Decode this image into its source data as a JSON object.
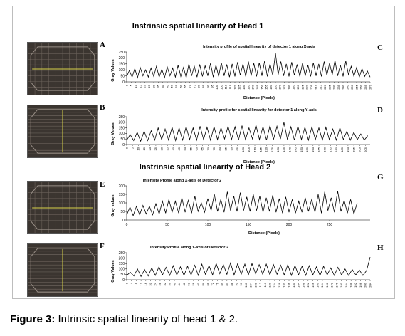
{
  "figure": {
    "head1_title": "Instrinsic spatial linearity of Head 1",
    "head2_title": "Instrinsic spatial linearity of Head 2",
    "caption_label": "Figure 3:",
    "caption_text": " Intrinsic spatial linearity of head 1 & 2."
  },
  "panels": {
    "A": "A",
    "B": "B",
    "C": "C",
    "D": "D",
    "E": "E",
    "F": "F",
    "G": "G",
    "H": "H"
  },
  "colors": {
    "line": "#000000",
    "image_bg": "#3b3530",
    "crosshair": "#d8d24a"
  },
  "chart_data": [
    {
      "id": "C",
      "type": "line",
      "title": "Intensity profile of spatial linearity of detector 1 along X-axis",
      "xlabel": "Distance (Pixels)",
      "ylabel": "Gray Values",
      "xlim": [
        0,
        270
      ],
      "ylim": [
        0,
        250
      ],
      "yticks": [
        0,
        50,
        100,
        150,
        200,
        250
      ],
      "xticks": [
        0,
        5,
        10,
        15,
        20,
        25,
        30,
        35,
        40,
        45,
        50,
        55,
        60,
        65,
        70,
        75,
        80,
        85,
        90,
        95,
        100,
        105,
        110,
        115,
        120,
        125,
        130,
        135,
        140,
        145,
        150,
        155,
        160,
        165,
        170,
        175,
        180,
        185,
        190,
        195,
        200,
        205,
        210,
        215,
        220,
        225,
        230,
        235,
        240,
        245,
        250,
        255,
        260,
        265,
        270
      ],
      "x": [
        0,
        3,
        6,
        9,
        12,
        15,
        18,
        21,
        24,
        27,
        30,
        33,
        36,
        39,
        42,
        45,
        48,
        51,
        54,
        57,
        60,
        63,
        66,
        69,
        72,
        75,
        78,
        81,
        84,
        87,
        90,
        93,
        96,
        99,
        102,
        105,
        108,
        111,
        114,
        117,
        120,
        123,
        126,
        129,
        132,
        135,
        138,
        141,
        144,
        147,
        150,
        153,
        156,
        159,
        162,
        165,
        168,
        171,
        174,
        177,
        180,
        183,
        186,
        189,
        192,
        195,
        198,
        201,
        204,
        207,
        210,
        213,
        216,
        219,
        222,
        225,
        228,
        231,
        234,
        237,
        240,
        243,
        246,
        249,
        252,
        255,
        258,
        261,
        264,
        267,
        270
      ],
      "y": [
        45,
        95,
        40,
        110,
        35,
        120,
        50,
        100,
        40,
        115,
        45,
        130,
        40,
        105,
        35,
        125,
        50,
        115,
        40,
        140,
        45,
        120,
        35,
        150,
        50,
        130,
        40,
        145,
        45,
        135,
        50,
        155,
        40,
        140,
        45,
        160,
        50,
        145,
        40,
        150,
        45,
        165,
        55,
        150,
        45,
        170,
        50,
        155,
        45,
        160,
        50,
        175,
        45,
        150,
        55,
        240,
        60,
        170,
        50,
        150,
        45,
        165,
        55,
        145,
        45,
        155,
        50,
        140,
        45,
        160,
        50,
        150,
        45,
        170,
        55,
        155,
        60,
        180,
        50,
        140,
        45,
        175,
        60,
        130,
        45,
        120,
        40,
        110,
        45,
        90,
        40
      ]
    },
    {
      "id": "D",
      "type": "line",
      "title": "Intensity profile for spatial linearity for detector 1 along Y-axis",
      "xlabel": "Distance (Pixels)",
      "ylabel": "Gray Values",
      "xlim": [
        0,
        209
      ],
      "ylim": [
        0,
        250
      ],
      "yticks": [
        0,
        50,
        100,
        150,
        200,
        250
      ],
      "xticks": [
        0,
        5,
        10,
        15,
        20,
        25,
        30,
        35,
        40,
        45,
        50,
        55,
        60,
        65,
        70,
        75,
        80,
        85,
        90,
        95,
        100,
        105,
        110,
        115,
        120,
        125,
        130,
        135,
        140,
        145,
        150,
        155,
        160,
        165,
        170,
        175,
        180,
        185,
        190,
        195,
        200,
        205
      ],
      "x": [
        0,
        3,
        6,
        9,
        12,
        15,
        18,
        21,
        24,
        27,
        30,
        33,
        36,
        39,
        42,
        45,
        48,
        51,
        54,
        57,
        60,
        63,
        66,
        69,
        72,
        75,
        78,
        81,
        84,
        87,
        90,
        93,
        96,
        99,
        102,
        105,
        108,
        111,
        114,
        117,
        120,
        123,
        126,
        129,
        132,
        135,
        138,
        141,
        144,
        147,
        150,
        153,
        156,
        159,
        162,
        165,
        168,
        171,
        174,
        177,
        180,
        183,
        186,
        189,
        192,
        195,
        198,
        201,
        204,
        207
      ],
      "y": [
        40,
        90,
        35,
        110,
        30,
        120,
        35,
        125,
        40,
        150,
        45,
        140,
        40,
        155,
        35,
        150,
        40,
        160,
        45,
        150,
        40,
        165,
        45,
        155,
        40,
        160,
        45,
        150,
        50,
        165,
        45,
        160,
        40,
        170,
        45,
        150,
        50,
        175,
        45,
        160,
        40,
        170,
        45,
        165,
        50,
        200,
        45,
        160,
        40,
        165,
        45,
        155,
        40,
        160,
        45,
        150,
        40,
        155,
        45,
        140,
        40,
        150,
        45,
        120,
        40,
        110,
        45,
        95,
        40,
        80
      ]
    },
    {
      "id": "G",
      "type": "line",
      "title": "Intensity Profile along X-axis of Detector 2",
      "xlabel": "Distance (Pixels)",
      "ylabel": "Gray values",
      "xlim": [
        0,
        300
      ],
      "ylim": [
        0,
        200
      ],
      "yticks": [
        0,
        50,
        100,
        150,
        200
      ],
      "xticks": [
        0,
        50,
        100,
        150,
        200,
        250
      ],
      "x": [
        0,
        4,
        8,
        12,
        16,
        20,
        24,
        28,
        32,
        36,
        40,
        44,
        48,
        52,
        56,
        60,
        64,
        68,
        72,
        76,
        80,
        84,
        88,
        92,
        96,
        100,
        104,
        108,
        112,
        116,
        120,
        124,
        128,
        132,
        136,
        140,
        144,
        148,
        152,
        156,
        160,
        164,
        168,
        172,
        176,
        180,
        184,
        188,
        192,
        196,
        200,
        204,
        208,
        212,
        216,
        220,
        224,
        228,
        232,
        236,
        240,
        244,
        248,
        252,
        256,
        260,
        264,
        268,
        272,
        276,
        280,
        284
      ],
      "y": [
        30,
        75,
        25,
        80,
        30,
        85,
        35,
        80,
        30,
        95,
        35,
        110,
        40,
        120,
        45,
        110,
        40,
        130,
        45,
        115,
        40,
        140,
        50,
        100,
        45,
        125,
        55,
        150,
        50,
        120,
        45,
        165,
        55,
        140,
        50,
        160,
        55,
        135,
        50,
        150,
        55,
        140,
        45,
        130,
        50,
        145,
        45,
        125,
        40,
        135,
        45,
        120,
        40,
        110,
        45,
        130,
        50,
        120,
        45,
        150,
        40,
        165,
        55,
        130,
        45,
        170,
        50,
        115,
        40,
        120,
        35,
        100
      ]
    },
    {
      "id": "H",
      "type": "line",
      "title": "Intensity Profile along Y-axis of Detector 2",
      "xlabel": "Distance (Pixels)",
      "ylabel": "Gray Values",
      "xlim": [
        0,
        204
      ],
      "ylim": [
        0,
        250
      ],
      "yticks": [
        0,
        50,
        100,
        150,
        200,
        250
      ],
      "xticks": [
        0,
        4,
        8,
        12,
        16,
        20,
        24,
        28,
        32,
        36,
        40,
        44,
        48,
        52,
        56,
        60,
        64,
        68,
        72,
        76,
        80,
        84,
        88,
        92,
        96,
        100,
        104,
        108,
        112,
        116,
        120,
        124,
        128,
        132,
        136,
        140,
        144,
        148,
        152,
        156,
        160,
        164,
        168,
        172,
        176,
        180,
        184,
        188,
        192,
        196,
        200,
        204
      ],
      "x": [
        0,
        3,
        6,
        9,
        12,
        15,
        18,
        21,
        24,
        27,
        30,
        33,
        36,
        39,
        42,
        45,
        48,
        51,
        54,
        57,
        60,
        63,
        66,
        69,
        72,
        75,
        78,
        81,
        84,
        87,
        90,
        93,
        96,
        99,
        102,
        105,
        108,
        111,
        114,
        117,
        120,
        123,
        126,
        129,
        132,
        135,
        138,
        141,
        144,
        147,
        150,
        153,
        156,
        159,
        162,
        165,
        168,
        171,
        174,
        177,
        180,
        183,
        186,
        189,
        192,
        195,
        198,
        201,
        204
      ],
      "y": [
        40,
        70,
        35,
        100,
        30,
        95,
        35,
        110,
        40,
        120,
        45,
        115,
        40,
        130,
        45,
        120,
        40,
        125,
        45,
        135,
        40,
        145,
        50,
        130,
        45,
        150,
        55,
        140,
        50,
        155,
        45,
        150,
        50,
        145,
        45,
        150,
        55,
        140,
        50,
        145,
        45,
        140,
        50,
        135,
        45,
        140,
        40,
        130,
        45,
        125,
        40,
        130,
        45,
        120,
        40,
        125,
        45,
        110,
        40,
        115,
        45,
        100,
        40,
        95,
        45,
        90,
        40,
        85,
        210
      ]
    }
  ]
}
